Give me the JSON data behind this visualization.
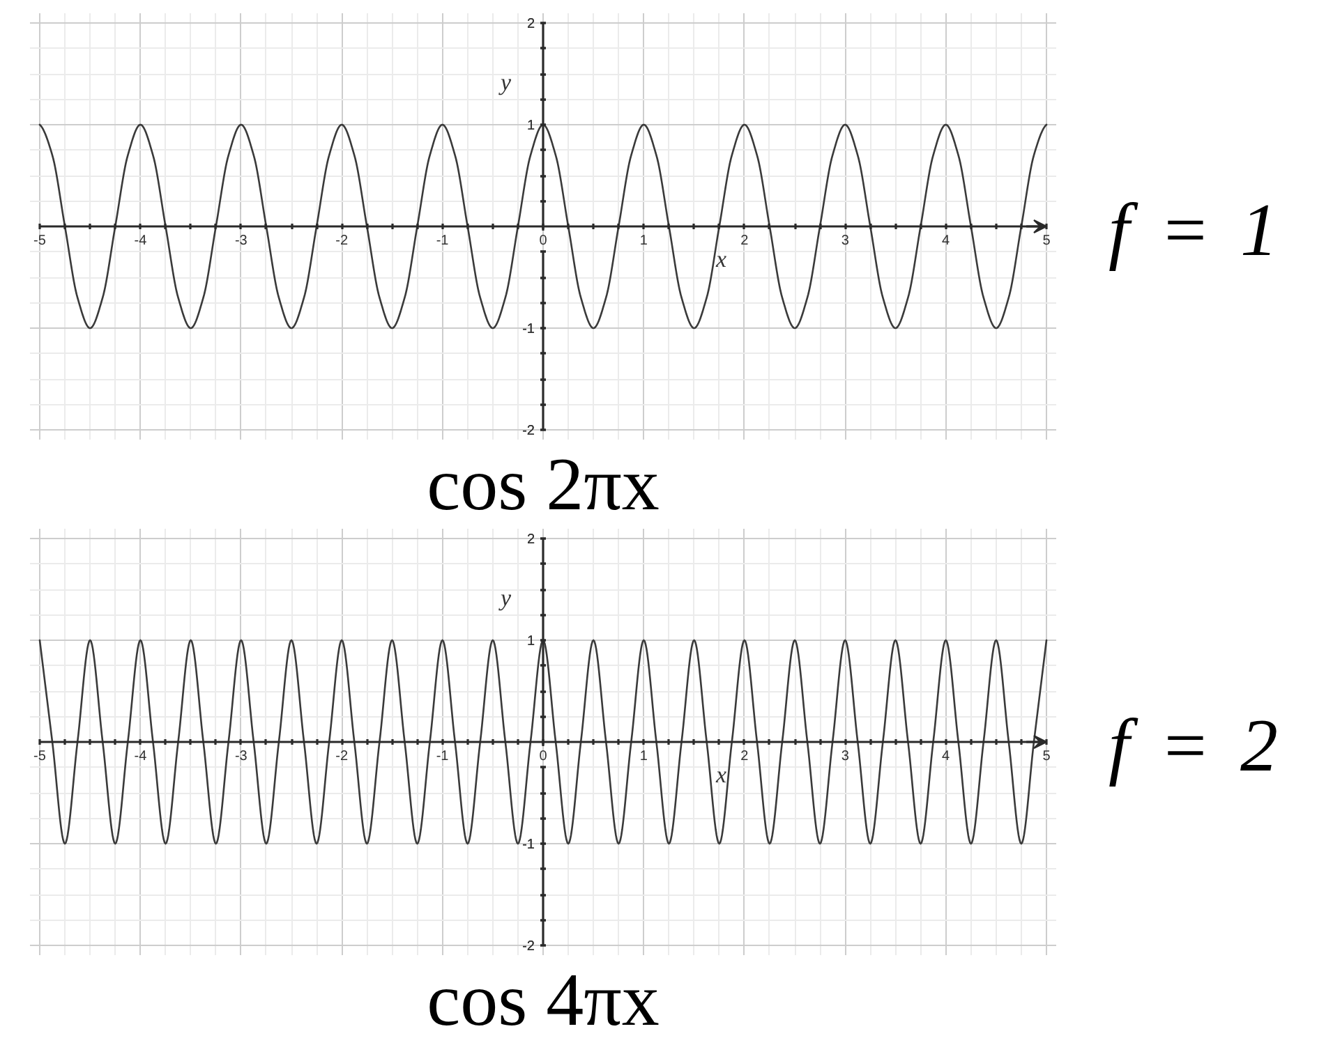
{
  "chart_data": [
    {
      "type": "line",
      "title": "cos 2πx",
      "xlabel": "x",
      "ylabel": "y",
      "annotations": [
        "f = 1"
      ],
      "x": [
        -5,
        -4.875,
        -4.75,
        -4.625,
        -4.5,
        -4.375,
        -4.25,
        -4.125,
        -4,
        -3.875,
        -3.75,
        -3.625,
        -3.5,
        -3.375,
        -3.25,
        -3.125,
        -3,
        -2.875,
        -2.75,
        -2.625,
        -2.5,
        -2.375,
        -2.25,
        -2.125,
        -2,
        -1.875,
        -1.75,
        -1.625,
        -1.5,
        -1.375,
        -1.25,
        -1.125,
        -1,
        -0.875,
        -0.75,
        -0.625,
        -0.5,
        -0.375,
        -0.25,
        -0.125,
        0,
        0.125,
        0.25,
        0.375,
        0.5,
        0.625,
        0.75,
        0.875,
        1,
        1.125,
        1.25,
        1.375,
        1.5,
        1.625,
        1.75,
        1.875,
        2,
        2.125,
        2.25,
        2.375,
        2.5,
        2.625,
        2.75,
        2.875,
        3,
        3.125,
        3.25,
        3.375,
        3.5,
        3.625,
        3.75,
        3.875,
        4,
        4.125,
        4.25,
        4.375,
        4.5,
        4.625,
        4.75,
        4.875,
        5
      ],
      "series": [
        {
          "color": "#3a3a3a",
          "values": [
            1,
            0.7,
            0,
            -0.7,
            -1,
            -0.7,
            0,
            0.7,
            1,
            0.7,
            0,
            -0.7,
            -1,
            -0.7,
            0,
            0.7,
            1,
            0.7,
            0,
            -0.7,
            -1,
            -0.7,
            0,
            0.7,
            1,
            0.7,
            0,
            -0.7,
            -1,
            -0.7,
            0,
            0.7,
            1,
            0.7,
            0,
            -0.7,
            -1,
            -0.7,
            0,
            0.7,
            1,
            0.7,
            0,
            -0.7,
            -1,
            -0.7,
            0,
            0.7,
            1,
            0.7,
            0,
            -0.7,
            -1,
            -0.7,
            0,
            0.7,
            1,
            0.7,
            0,
            -0.7,
            -1,
            -0.7,
            0,
            0.7,
            1,
            0.7,
            0,
            -0.7,
            -1,
            -0.7,
            0,
            0.7,
            1,
            0.7,
            0,
            -0.7,
            -1,
            -0.7,
            0,
            0.7,
            1
          ]
        }
      ],
      "xlim": [
        -5,
        5
      ],
      "ylim": [
        -2,
        2
      ],
      "xticks": [
        -5,
        {
          "value": -4.75,
          "label": null
        },
        {
          "value": -4.5,
          "label": null
        },
        {
          "value": -4.25,
          "label": null
        },
        -4,
        {
          "value": -3.75,
          "label": null
        },
        {
          "value": -3.5,
          "label": null
        },
        {
          "value": -3.25,
          "label": null
        },
        -3,
        {
          "value": -2.75,
          "label": null
        },
        {
          "value": -2.5,
          "label": null
        },
        {
          "value": -2.25,
          "label": null
        },
        -2,
        {
          "value": -1.75,
          "label": null
        },
        {
          "value": -1.5,
          "label": null
        },
        {
          "value": -1.25,
          "label": null
        },
        -1,
        {
          "value": -0.75,
          "label": null
        },
        {
          "value": -0.5,
          "label": null
        },
        {
          "value": -0.25,
          "label": null
        },
        0,
        {
          "value": 0.25,
          "label": null
        },
        {
          "value": 0.5,
          "label": null
        },
        {
          "value": 0.75,
          "label": null
        },
        1,
        {
          "value": 1.25,
          "label": null
        },
        {
          "value": 1.5,
          "label": null
        },
        {
          "value": 1.75,
          "label": null
        },
        2,
        {
          "value": 2.25,
          "label": null
        },
        {
          "value": 2.5,
          "label": null
        },
        {
          "value": 2.75,
          "label": null
        },
        3,
        {
          "value": 3.25,
          "label": null
        },
        {
          "value": 3.5,
          "label": null
        },
        {
          "value": 3.75,
          "label": null
        },
        4,
        {
          "value": 4.25,
          "label": null
        },
        {
          "value": 4.5,
          "label": null
        },
        {
          "value": 4.75,
          "label": null
        },
        5
      ],
      "yticks": [
        -2,
        {
          "value": -1.75,
          "label": null
        },
        {
          "value": -1.5,
          "label": null
        },
        {
          "value": -1.25,
          "label": null
        },
        -1,
        {
          "value": -0.75,
          "label": null
        },
        {
          "value": -0.5,
          "label": null
        },
        {
          "value": -0.25,
          "label": null
        },
        {
          "value": 0.25,
          "label": null
        },
        {
          "value": 0.5,
          "label": null
        },
        {
          "value": 0.75,
          "label": null
        },
        1,
        {
          "value": 1.25,
          "label": null
        },
        {
          "value": 1.5,
          "label": null
        },
        {
          "value": 1.75,
          "label": null
        },
        2
      ],
      "grid": true,
      "line_style": "solid"
    },
    {
      "type": "line",
      "title": "cos 4πx",
      "xlabel": "x",
      "ylabel": "y",
      "annotations": [
        "f = 2"
      ],
      "x": [
        -5,
        -4.875,
        -4.75,
        -4.625,
        -4.5,
        -4.375,
        -4.25,
        -4.125,
        -4,
        -3.875,
        -3.75,
        -3.625,
        -3.5,
        -3.375,
        -3.25,
        -3.125,
        -3,
        -2.875,
        -2.75,
        -2.625,
        -2.5,
        -2.375,
        -2.25,
        -2.125,
        -2,
        -1.875,
        -1.75,
        -1.625,
        -1.5,
        -1.375,
        -1.25,
        -1.125,
        -1,
        -0.875,
        -0.75,
        -0.625,
        -0.5,
        -0.375,
        -0.25,
        -0.125,
        0,
        0.125,
        0.25,
        0.375,
        0.5,
        0.625,
        0.75,
        0.875,
        1,
        1.125,
        1.25,
        1.375,
        1.5,
        1.625,
        1.75,
        1.875,
        2,
        2.125,
        2.25,
        2.375,
        2.5,
        2.625,
        2.75,
        2.875,
        3,
        3.125,
        3.25,
        3.375,
        3.5,
        3.625,
        3.75,
        3.875,
        4,
        4.125,
        4.25,
        4.375,
        4.5,
        4.625,
        4.75,
        4.875,
        5
      ],
      "series": [
        {
          "color": "#3a3a3a",
          "values": [
            1,
            0,
            -1,
            0,
            1,
            0,
            -1,
            0,
            1,
            0,
            -1,
            0,
            1,
            0,
            -1,
            0,
            1,
            0,
            -1,
            0,
            1,
            0,
            -1,
            0,
            1,
            0,
            -1,
            0,
            1,
            0,
            -1,
            0,
            1,
            0,
            -1,
            0,
            1,
            0,
            -1,
            0,
            1,
            0,
            -1,
            0,
            1,
            0,
            -1,
            0,
            1,
            0,
            -1,
            0,
            1,
            0,
            -1,
            0,
            1,
            0,
            -1,
            0,
            1,
            0,
            -1,
            0,
            1,
            0,
            -1,
            0,
            1,
            0,
            -1,
            0,
            1,
            0,
            -1,
            0,
            1,
            0,
            -1,
            0,
            1
          ]
        }
      ],
      "xlim": [
        -5,
        5
      ],
      "ylim": [
        -2,
        2
      ],
      "xticks": [
        -5,
        {
          "value": -4.75,
          "label": null
        },
        {
          "value": -4.5,
          "label": null
        },
        {
          "value": -4.25,
          "label": null
        },
        -4,
        {
          "value": -3.75,
          "label": null
        },
        {
          "value": -3.5,
          "label": null
        },
        {
          "value": -3.25,
          "label": null
        },
        -3,
        {
          "value": -2.75,
          "label": null
        },
        {
          "value": -2.5,
          "label": null
        },
        {
          "value": -2.25,
          "label": null
        },
        -2,
        {
          "value": -1.75,
          "label": null
        },
        {
          "value": -1.5,
          "label": null
        },
        {
          "value": -1.25,
          "label": null
        },
        -1,
        {
          "value": -0.75,
          "label": null
        },
        {
          "value": -0.5,
          "label": null
        },
        {
          "value": -0.25,
          "label": null
        },
        0,
        {
          "value": 0.25,
          "label": null
        },
        {
          "value": 0.5,
          "label": null
        },
        {
          "value": 0.75,
          "label": null
        },
        1,
        {
          "value": 1.25,
          "label": null
        },
        {
          "value": 1.5,
          "label": null
        },
        {
          "value": 1.75,
          "label": null
        },
        2,
        {
          "value": 2.25,
          "label": null
        },
        {
          "value": 2.5,
          "label": null
        },
        {
          "value": 2.75,
          "label": null
        },
        3,
        {
          "value": 3.25,
          "label": null
        },
        {
          "value": 3.5,
          "label": null
        },
        {
          "value": 3.75,
          "label": null
        },
        4,
        {
          "value": 4.25,
          "label": null
        },
        {
          "value": 4.5,
          "label": null
        },
        {
          "value": 4.75,
          "label": null
        },
        5
      ],
      "yticks": [
        -2,
        {
          "value": -1.75,
          "label": null
        },
        {
          "value": -1.5,
          "label": null
        },
        {
          "value": -1.25,
          "label": null
        },
        -1,
        {
          "value": -0.75,
          "label": null
        },
        {
          "value": -0.5,
          "label": null
        },
        {
          "value": -0.25,
          "label": null
        },
        {
          "value": 0.25,
          "label": null
        },
        {
          "value": 0.5,
          "label": null
        },
        {
          "value": 0.75,
          "label": null
        },
        1,
        {
          "value": 1.25,
          "label": null
        },
        {
          "value": 1.5,
          "label": null
        },
        {
          "value": 1.75,
          "label": null
        },
        2
      ],
      "grid": true,
      "line_style": "solid"
    }
  ]
}
